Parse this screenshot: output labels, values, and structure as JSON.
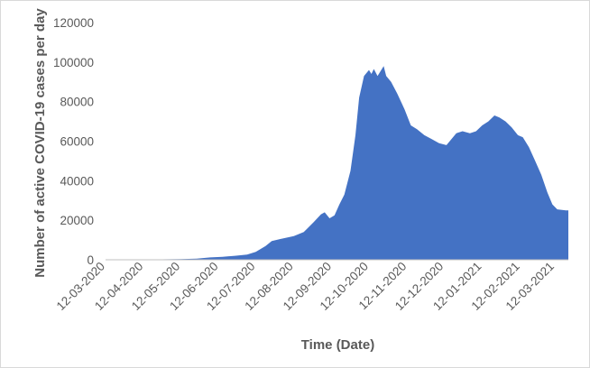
{
  "chart_data": {
    "type": "area",
    "title": "",
    "xlabel": "Time (Date)",
    "ylabel": "Number of active COVID-19 cases per day",
    "ylim": [
      0,
      120000
    ],
    "yticks": [
      0,
      20000,
      40000,
      60000,
      80000,
      100000,
      120000
    ],
    "xlim": [
      "2020-03-12",
      "2021-03-23"
    ],
    "xticks": [
      {
        "date": "2020-03-12",
        "label": "12-03-2020"
      },
      {
        "date": "2020-04-12",
        "label": "12-04-2020"
      },
      {
        "date": "2020-05-12",
        "label": "12-05-2020"
      },
      {
        "date": "2020-06-12",
        "label": "12-06-2020"
      },
      {
        "date": "2020-07-12",
        "label": "12-07-2020"
      },
      {
        "date": "2020-08-12",
        "label": "12-08-2020"
      },
      {
        "date": "2020-09-12",
        "label": "12-09-2020"
      },
      {
        "date": "2020-10-12",
        "label": "12-10-2020"
      },
      {
        "date": "2020-11-12",
        "label": "12-11-2020"
      },
      {
        "date": "2020-12-12",
        "label": "12-12-2020"
      },
      {
        "date": "2021-01-12",
        "label": "12-01-2021"
      },
      {
        "date": "2021-02-12",
        "label": "12-02-2021"
      },
      {
        "date": "2021-03-12",
        "label": "12-03-2021"
      }
    ],
    "grid": false,
    "legend": "none",
    "color": "#4472C4",
    "series": [
      {
        "points": [
          [
            "2020-03-12",
            0
          ],
          [
            "2020-04-12",
            100
          ],
          [
            "2020-05-12",
            300
          ],
          [
            "2020-05-25",
            600
          ],
          [
            "2020-06-05",
            1200
          ],
          [
            "2020-06-15",
            1500
          ],
          [
            "2020-06-25",
            2000
          ],
          [
            "2020-07-05",
            2600
          ],
          [
            "2020-07-12",
            4000
          ],
          [
            "2020-07-20",
            7000
          ],
          [
            "2020-07-25",
            9500
          ],
          [
            "2020-08-01",
            10500
          ],
          [
            "2020-08-12",
            12000
          ],
          [
            "2020-08-20",
            14000
          ],
          [
            "2020-08-28",
            19000
          ],
          [
            "2020-09-03",
            23000
          ],
          [
            "2020-09-06",
            24000
          ],
          [
            "2020-09-10",
            21000
          ],
          [
            "2020-09-14",
            22500
          ],
          [
            "2020-09-18",
            28000
          ],
          [
            "2020-09-22",
            33000
          ],
          [
            "2020-09-27",
            45000
          ],
          [
            "2020-10-01",
            63000
          ],
          [
            "2020-10-04",
            82000
          ],
          [
            "2020-10-08",
            93000
          ],
          [
            "2020-10-12",
            96000
          ],
          [
            "2020-10-14",
            94000
          ],
          [
            "2020-10-16",
            96500
          ],
          [
            "2020-10-19",
            93000
          ],
          [
            "2020-10-21",
            95000
          ],
          [
            "2020-10-24",
            98000
          ],
          [
            "2020-10-26",
            93000
          ],
          [
            "2020-10-30",
            90000
          ],
          [
            "2020-11-04",
            84000
          ],
          [
            "2020-11-10",
            76000
          ],
          [
            "2020-11-15",
            68000
          ],
          [
            "2020-11-20",
            66000
          ],
          [
            "2020-11-26",
            63000
          ],
          [
            "2020-12-02",
            61000
          ],
          [
            "2020-12-08",
            59000
          ],
          [
            "2020-12-14",
            58000
          ],
          [
            "2020-12-18",
            61000
          ],
          [
            "2020-12-22",
            64000
          ],
          [
            "2020-12-27",
            65000
          ],
          [
            "2021-01-02",
            64000
          ],
          [
            "2021-01-07",
            65000
          ],
          [
            "2021-01-12",
            68000
          ],
          [
            "2021-01-17",
            70000
          ],
          [
            "2021-01-22",
            73000
          ],
          [
            "2021-01-26",
            72000
          ],
          [
            "2021-01-31",
            70000
          ],
          [
            "2021-02-05",
            67000
          ],
          [
            "2021-02-10",
            63000
          ],
          [
            "2021-02-14",
            62000
          ],
          [
            "2021-02-19",
            57000
          ],
          [
            "2021-02-24",
            50000
          ],
          [
            "2021-03-01",
            43000
          ],
          [
            "2021-03-06",
            34000
          ],
          [
            "2021-03-10",
            28000
          ],
          [
            "2021-03-14",
            25500
          ],
          [
            "2021-03-21",
            25000
          ],
          [
            "2021-03-23",
            25000
          ]
        ]
      }
    ]
  }
}
